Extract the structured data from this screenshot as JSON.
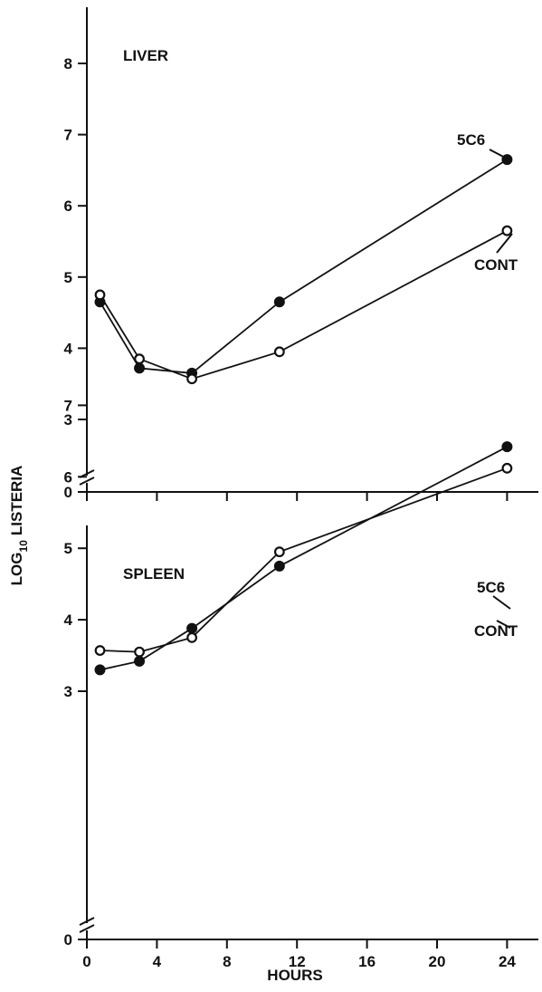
{
  "chart_data": [
    {
      "type": "line",
      "title": "LIVER",
      "ylabel": "LOG10 LISTERIA",
      "xlim": [
        0,
        26
      ],
      "ylim": [
        2.5,
        8.7
      ],
      "y_axis_break": true,
      "y_break_label": "0",
      "x": [
        0.75,
        3,
        6,
        11,
        24
      ],
      "yticks": [
        3,
        4,
        5,
        6,
        7,
        8
      ],
      "ytick_labels": [
        "3",
        "4",
        "5",
        "6",
        "7",
        "8"
      ],
      "series": [
        {
          "name": "5C6",
          "marker": "filled-circle",
          "values": [
            4.65,
            3.72,
            3.65,
            4.65,
            6.65
          ]
        },
        {
          "name": "CONT",
          "marker": "open-circle",
          "values": [
            4.75,
            3.85,
            3.57,
            3.95,
            5.65
          ]
        }
      ]
    },
    {
      "type": "line",
      "title": "SPLEEN",
      "xlabel": "HOURS",
      "xlim": [
        0,
        26
      ],
      "ylim": [
        2.5,
        7.4
      ],
      "y_axis_break": true,
      "y_break_label": "0",
      "x": [
        0.75,
        3,
        6,
        11,
        24
      ],
      "xticks": [
        0,
        4,
        8,
        12,
        16,
        20,
        24
      ],
      "xtick_labels": [
        "0",
        "4",
        "8",
        "12",
        "16",
        "20",
        "24"
      ],
      "yticks": [
        3,
        4,
        5,
        6,
        7
      ],
      "ytick_labels": [
        "3",
        "4",
        "5",
        "6",
        "7"
      ],
      "series": [
        {
          "name": "5C6",
          "marker": "filled-circle",
          "values": [
            3.3,
            3.42,
            3.88,
            4.75,
            6.42
          ]
        },
        {
          "name": "CONT",
          "marker": "open-circle",
          "values": [
            3.57,
            3.55,
            3.75,
            4.95,
            6.12
          ]
        }
      ]
    }
  ],
  "shared_ylabel": {
    "main": "LOG",
    "subscript": "10",
    "rest": "LISTERIA"
  }
}
